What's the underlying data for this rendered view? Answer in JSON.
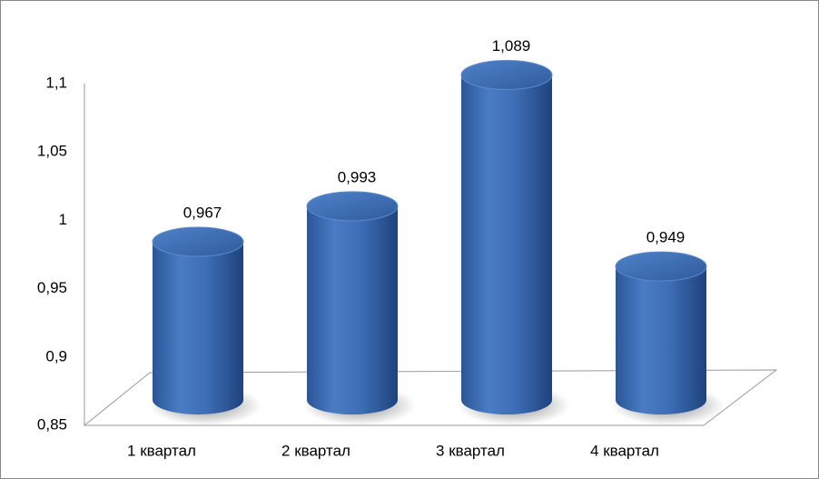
{
  "chart_data": {
    "type": "bar",
    "categories": [
      "1 квартал",
      "2 квартал",
      "3 квартал",
      "4 квартал"
    ],
    "values": [
      0.967,
      0.993,
      1.089,
      0.949
    ],
    "value_labels": [
      "0,967",
      "0,993",
      "1,089",
      "0,949"
    ],
    "color": "#3f6fb5",
    "ylim": [
      0.85,
      1.1
    ],
    "yticks": [
      {
        "value": 0.85,
        "label": "0,85"
      },
      {
        "value": 0.9,
        "label": "0,9"
      },
      {
        "value": 0.95,
        "label": "0,95"
      },
      1,
      {
        "value": 1.05,
        "label": "1,05"
      },
      {
        "value": 1.1,
        "label": "1,1"
      }
    ],
    "grid": false
  }
}
